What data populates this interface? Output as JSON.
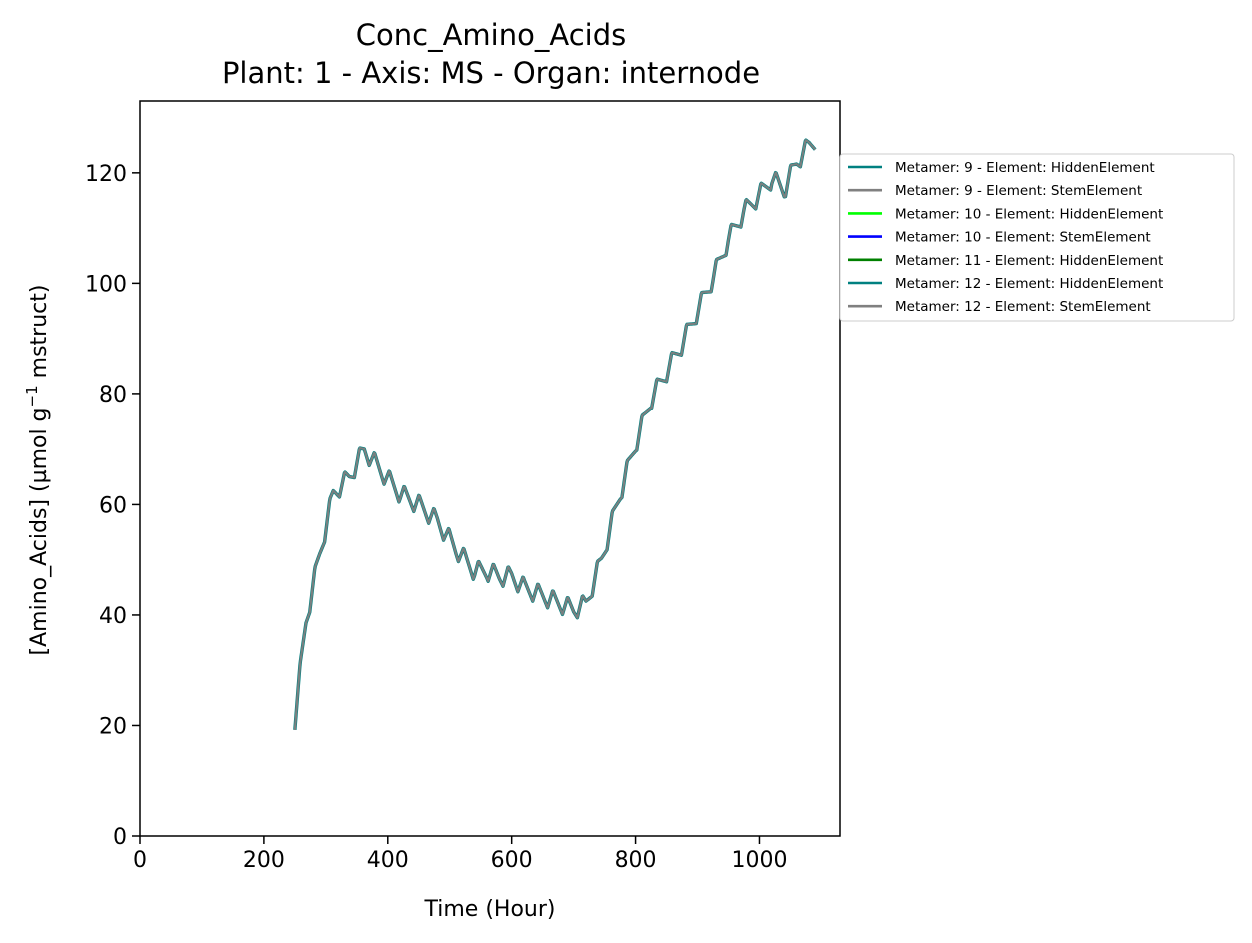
{
  "chart_data": {
    "type": "line",
    "title": "Conc_Amino_Acids",
    "subtitle": "Plant: 1 - Axis: MS - Organ: internode",
    "xlabel": "Time (Hour)",
    "ylabel_main": "[Amino_Acids] (µmol g",
    "ylabel_sup": "−1",
    "ylabel_tail": " mstruct)",
    "xlim": [
      0,
      1130
    ],
    "ylim": [
      0,
      133
    ],
    "xticks": [
      0,
      200,
      400,
      600,
      800,
      1000
    ],
    "yticks": [
      0,
      20,
      40,
      60,
      80,
      100,
      120
    ],
    "grid": false,
    "legend_position": "outside-right-top",
    "series": [
      {
        "name": "Metamer: 9 - Element: HiddenElement",
        "color": "#008080"
      },
      {
        "name": "Metamer: 9 - Element: StemElement",
        "color": "#808080"
      },
      {
        "name": "Metamer: 10 - Element: HiddenElement",
        "color": "#00ff00"
      },
      {
        "name": "Metamer: 10 - Element: StemElement",
        "color": "#0000ff"
      },
      {
        "name": "Metamer: 11 - Element: HiddenElement",
        "color": "#008000"
      },
      {
        "name": "Metamer: 12 - Element: HiddenElement",
        "color": "#008080"
      },
      {
        "name": "Metamer: 12 - Element: StemElement",
        "color": "#808080"
      }
    ],
    "trend": {
      "x": [
        250,
        268,
        290,
        312,
        338,
        362,
        390,
        420,
        450,
        480,
        510,
        540,
        560,
        580,
        600,
        620,
        640,
        660,
        680,
        700,
        720,
        745,
        775,
        800,
        825,
        850,
        875,
        900,
        925,
        950,
        975,
        1000,
        1020,
        1040,
        1060,
        1080,
        1090
      ],
      "y": [
        21,
        39,
        51,
        62,
        65,
        70,
        66,
        62,
        60,
        57,
        52,
        48,
        48,
        47,
        47,
        45,
        44,
        43,
        42,
        41,
        42,
        50,
        62,
        71,
        79,
        84,
        89,
        95,
        101,
        108,
        113,
        116,
        119,
        117,
        122,
        125,
        126
      ]
    },
    "oscillation": {
      "period_hours": 24,
      "amplitude": 1.8
    }
  }
}
